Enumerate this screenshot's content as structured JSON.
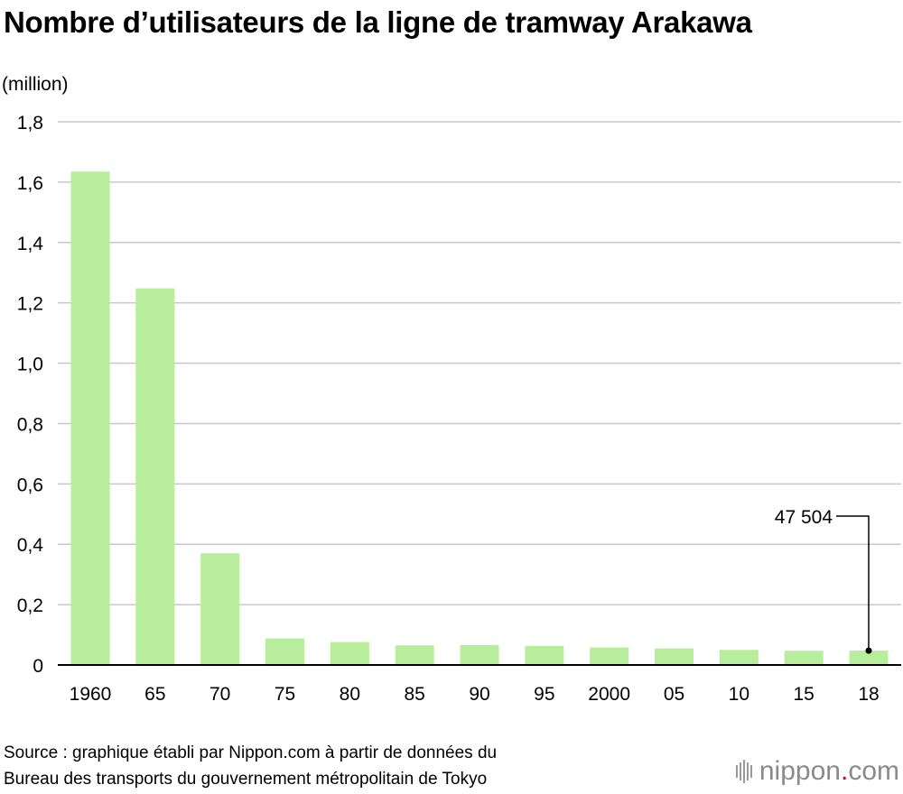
{
  "title": "Nombre d’utilisateurs de la ligne de tramway Arakawa",
  "unit_label": "(million)",
  "source": [
    "Source : graphique établi par Nippon.com à partir de données du",
    "Bureau des transports du gouvernement métropolitain de Tokyo"
  ],
  "brand": {
    "name": "nippon",
    "dot": ".",
    "tld": "com"
  },
  "chart_data": {
    "type": "bar",
    "categories": [
      "1960",
      "65",
      "70",
      "75",
      "80",
      "85",
      "90",
      "95",
      "2000",
      "05",
      "10",
      "15",
      "18"
    ],
    "values": [
      1.635,
      1.248,
      0.37,
      0.088,
      0.076,
      0.065,
      0.066,
      0.063,
      0.058,
      0.055,
      0.05,
      0.047,
      0.047504
    ],
    "ylim": [
      0,
      1.8
    ],
    "yticks": [
      "0",
      "0,2",
      "0,4",
      "0,6",
      "0,8",
      "1,0",
      "1,2",
      "1,4",
      "1,6",
      "1,8"
    ],
    "annotation": {
      "category": "18",
      "label": "47 504"
    },
    "bar_color": "#b8ed9b",
    "grid": true
  }
}
